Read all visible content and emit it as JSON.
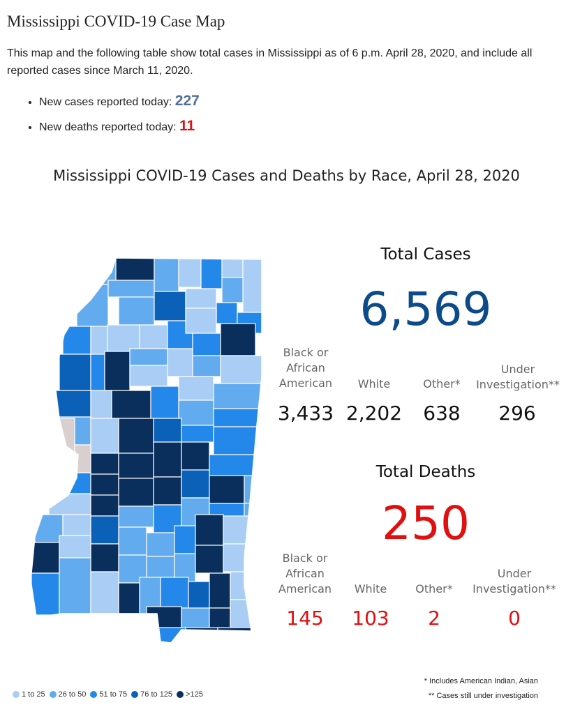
{
  "header": {
    "title": "Mississippi COVID-19 Case Map",
    "intro": "This map and the following table show total cases in Mississippi as of 6 p.m. April 28, 2020, and include all reported cases since March 11, 2020."
  },
  "stats": {
    "new_cases_label": "New cases reported today:",
    "new_cases_value": "227",
    "new_deaths_label": "New deaths reported today:",
    "new_deaths_value": "11"
  },
  "chart_title": "Mississippi COVID-19 Cases and Deaths by Race, April 28, 2020",
  "cases": {
    "title": "Total Cases",
    "total": "6,569",
    "categories": [
      {
        "label": "Black or African American",
        "value": "3,433"
      },
      {
        "label": "White",
        "value": "2,202"
      },
      {
        "label": "Other*",
        "value": "638"
      },
      {
        "label": "Under Investigation**",
        "value": "296"
      }
    ]
  },
  "deaths": {
    "title": "Total Deaths",
    "total": "250",
    "categories": [
      {
        "label": "Black or African American",
        "value": "145"
      },
      {
        "label": "White",
        "value": "103"
      },
      {
        "label": "Other*",
        "value": "2"
      },
      {
        "label": "Under Investigation**",
        "value": "0"
      }
    ]
  },
  "footnotes": {
    "other": "* Includes American Indian, Asian",
    "investigation": "** Cases still under investigation"
  },
  "legend": [
    {
      "label": "1 to 25",
      "color": "#a9cdf5"
    },
    {
      "label": "26 to 50",
      "color": "#63abef"
    },
    {
      "label": "51 to 75",
      "color": "#2488ea"
    },
    {
      "label": "76 to 125",
      "color": "#0b60b8"
    },
    {
      "label": ">125",
      "color": "#0b2f5c"
    }
  ]
}
